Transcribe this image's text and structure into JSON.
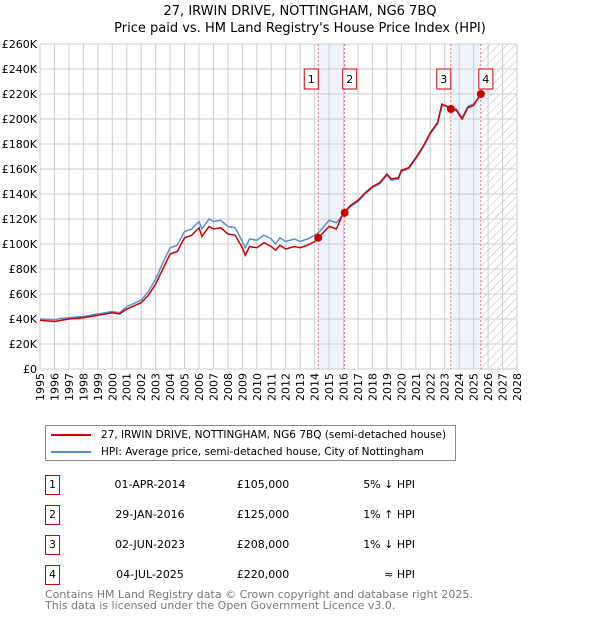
{
  "title": {
    "line1": "27, IRWIN DRIVE, NOTTINGHAM, NG6 7BQ",
    "line2": "Price paid vs. HM Land Registry's House Price Index (HPI)"
  },
  "chart_data": {
    "type": "line",
    "title": "Price paid vs. HM Land Registry's House Price Index (HPI)",
    "xlim": [
      1995,
      2028
    ],
    "ylim": [
      0,
      260000
    ],
    "xticks": [
      "1995",
      "1996",
      "1997",
      "1998",
      "1999",
      "2000",
      "2001",
      "2002",
      "2003",
      "2004",
      "2005",
      "2006",
      "2007",
      "2008",
      "2009",
      "2010",
      "2011",
      "2012",
      "2013",
      "2014",
      "2015",
      "2016",
      "2017",
      "2018",
      "2019",
      "2020",
      "2021",
      "2022",
      "2023",
      "2024",
      "2025",
      "2026",
      "2027",
      "2028"
    ],
    "yticks": [
      {
        "v": 0,
        "l": "£0"
      },
      {
        "v": 20000,
        "l": "£20K"
      },
      {
        "v": 40000,
        "l": "£40K"
      },
      {
        "v": 60000,
        "l": "£60K"
      },
      {
        "v": 80000,
        "l": "£80K"
      },
      {
        "v": 100000,
        "l": "£100K"
      },
      {
        "v": 120000,
        "l": "£120K"
      },
      {
        "v": 140000,
        "l": "£140K"
      },
      {
        "v": 160000,
        "l": "£160K"
      },
      {
        "v": 180000,
        "l": "£180K"
      },
      {
        "v": 200000,
        "l": "£200K"
      },
      {
        "v": 220000,
        "l": "£220K"
      },
      {
        "v": 240000,
        "l": "£240K"
      },
      {
        "v": 260000,
        "l": "£260K"
      }
    ],
    "x": [
      1995,
      1996,
      1996.5,
      1997,
      1998,
      1999,
      2000,
      2000.5,
      2001,
      2002,
      2002.5,
      2003,
      2003.5,
      2004,
      2004.5,
      2005,
      2005.5,
      2006,
      2006.2,
      2006.7,
      2007,
      2007.5,
      2008,
      2008.5,
      2009,
      2009.2,
      2009.5,
      2010,
      2010.5,
      2011,
      2011.3,
      2011.6,
      2012,
      2012.6,
      2013,
      2013.5,
      2014,
      2014.25,
      2014.5,
      2015,
      2015.5,
      2016,
      2016.5,
      2017,
      2017.5,
      2018,
      2018.5,
      2019,
      2019.3,
      2019.8,
      2020,
      2020.5,
      2021,
      2021.5,
      2022,
      2022.5,
      2022.8,
      2023,
      2023.42,
      2023.8,
      2024.2,
      2024.6,
      2025,
      2025.5
    ],
    "series": [
      {
        "name": "HPI: Average price, semi-detached house, City of Nottingham",
        "color": "#5b8fd4",
        "values_k": [
          40,
          39.5,
          40.5,
          41,
          42,
          44,
          46,
          45,
          50,
          55,
          62,
          72,
          85,
          97,
          99,
          110,
          112,
          118,
          112,
          120,
          118,
          119,
          114,
          113,
          102,
          97,
          104,
          103,
          107,
          104,
          100,
          105,
          102,
          104,
          102,
          104,
          107,
          109,
          112,
          119,
          117,
          124,
          130,
          134,
          140,
          145,
          148,
          155,
          151,
          152,
          158,
          160,
          168,
          177,
          188,
          196,
          210,
          211,
          209,
          208,
          201,
          210,
          212,
          219
        ]
      },
      {
        "name": "27, IRWIN DRIVE, NOTTINGHAM, NG6 7BQ (semi-detached house)",
        "color": "#cc0000",
        "values_k": [
          39,
          38,
          39,
          40,
          41,
          43,
          45,
          44,
          48,
          53,
          59,
          68,
          80,
          92,
          94,
          105,
          107,
          113,
          106,
          114,
          112,
          113,
          108,
          107,
          97,
          91,
          98,
          97,
          101,
          98,
          95,
          99,
          96,
          98,
          97,
          99,
          102,
          105,
          108,
          114,
          112,
          125,
          131,
          135,
          141,
          146,
          149,
          156,
          152,
          153,
          159,
          161,
          169,
          178,
          189,
          197,
          212,
          211,
          208,
          207,
          200,
          209,
          211,
          220
        ]
      }
    ],
    "sales": [
      {
        "n": "1",
        "x": 2014.25,
        "v": 105000,
        "date": "01-APR-2014",
        "price": "£105,000",
        "hpi": "5% ↓ HPI"
      },
      {
        "n": "2",
        "x": 2016.08,
        "v": 125000,
        "date": "29-JAN-2016",
        "price": "£125,000",
        "hpi": "1% ↑ HPI"
      },
      {
        "n": "3",
        "x": 2023.42,
        "v": 208000,
        "date": "02-JUN-2023",
        "price": "£208,000",
        "hpi": "1% ↓ HPI"
      },
      {
        "n": "4",
        "x": 2025.5,
        "v": 220000,
        "date": "04-JUL-2025",
        "price": "£220,000",
        "hpi": "≈ HPI"
      }
    ],
    "shaded": [
      [
        2014.25,
        2016.08
      ],
      [
        2023.42,
        2025.5
      ]
    ],
    "forecast_from": 2025.5
  },
  "legend": {
    "property": "27, IRWIN DRIVE, NOTTINGHAM, NG6 7BQ (semi-detached house)",
    "hpi": "HPI: Average price, semi-detached house, City of Nottingham"
  },
  "footer": {
    "line1": "Contains HM Land Registry data © Crown copyright and database right 2025.",
    "line2": "This data is licensed under the Open Government Licence v3.0."
  }
}
